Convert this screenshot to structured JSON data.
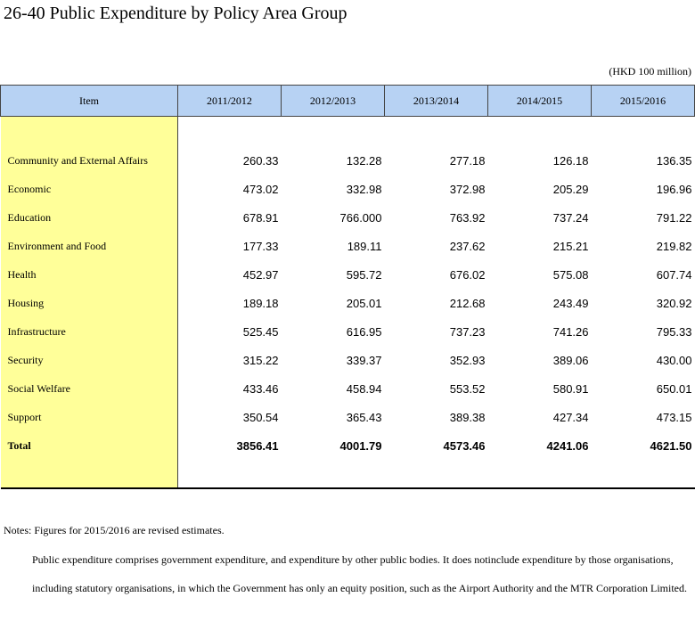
{
  "title": "26-40  Public Expenditure by Policy Area Group",
  "unit": "(HKD 100 million)",
  "table": {
    "item_header": "Item",
    "years": [
      "2011/2012",
      "2012/2013",
      "2013/2014",
      "2014/2015",
      "2015/2016"
    ],
    "rows": [
      {
        "item": "Community and External Affairs",
        "values": [
          "260.33",
          "132.28",
          "277.18",
          "126.18",
          "136.35"
        ]
      },
      {
        "item": "Economic",
        "values": [
          "473.02",
          "332.98",
          "372.98",
          "205.29",
          "196.96"
        ]
      },
      {
        "item": "Education",
        "values": [
          "678.91",
          "766.000",
          "763.92",
          "737.24",
          "791.22"
        ]
      },
      {
        "item": "Environment and Food",
        "values": [
          "177.33",
          "189.11",
          "237.62",
          "215.21",
          "219.82"
        ]
      },
      {
        "item": "Health",
        "values": [
          "452.97",
          "595.72",
          "676.02",
          "575.08",
          "607.74"
        ]
      },
      {
        "item": "Housing",
        "values": [
          "189.18",
          "205.01",
          "212.68",
          "243.49",
          "320.92"
        ]
      },
      {
        "item": "Infrastructure",
        "values": [
          "525.45",
          "616.95",
          "737.23",
          "741.26",
          "795.33"
        ]
      },
      {
        "item": "Security",
        "values": [
          "315.22",
          "339.37",
          "352.93",
          "389.06",
          "430.00"
        ]
      },
      {
        "item": "Social Welfare",
        "values": [
          "433.46",
          "458.94",
          "553.52",
          "580.91",
          "650.01"
        ]
      },
      {
        "item": "Support",
        "values": [
          "350.54",
          "365.43",
          "389.38",
          "427.34",
          "473.15"
        ]
      }
    ],
    "total": {
      "item": "Total",
      "values": [
        "3856.41",
        "4001.79",
        "4573.46",
        "4241.06",
        "4621.50"
      ]
    }
  },
  "notes": {
    "line1": "Notes: Figures for 2015/2016 are revised estimates.",
    "line2": "Public expenditure comprises government expenditure, and expenditure by other public bodies. It does notinclude expenditure by those organisations, including statutory organisations, in which the Government has only an equity position, such as the Airport Authority and the MTR Corporation Limited."
  }
}
